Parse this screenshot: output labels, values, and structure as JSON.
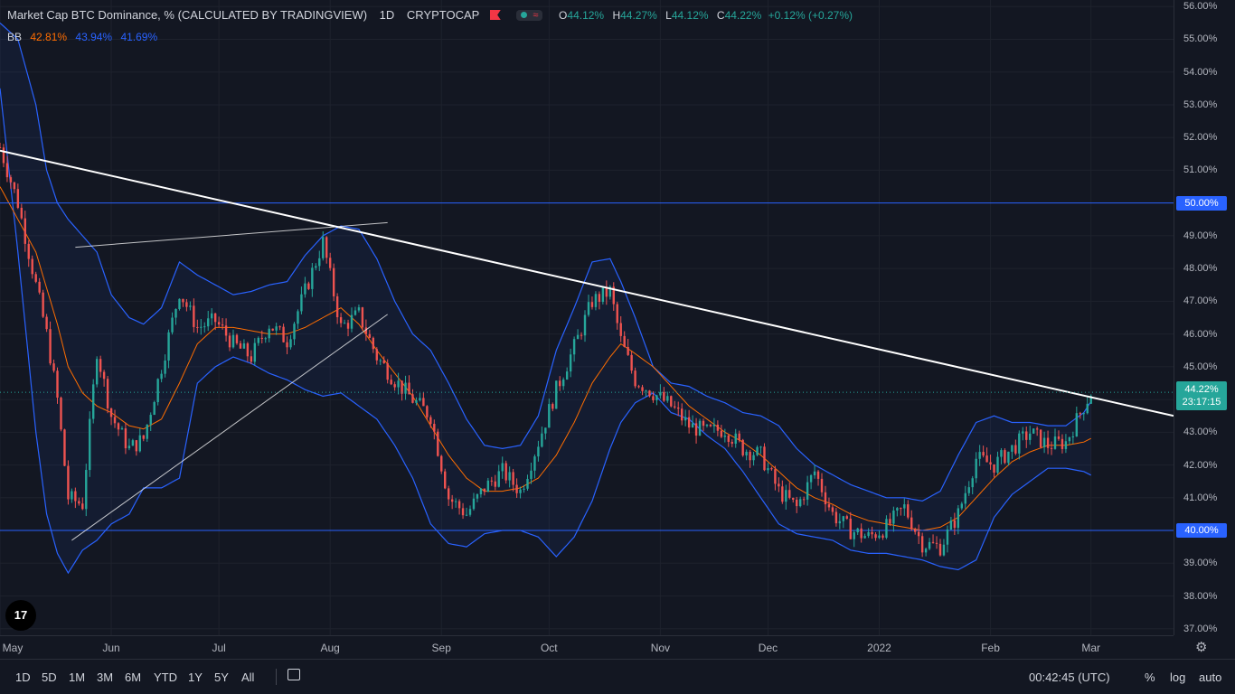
{
  "legend": {
    "title": "Market Cap BTC Dominance, % (CALCULATED BY TRADINGVIEW)",
    "interval": "1D",
    "exchange": "CRYPTOCAP",
    "o_label": "O",
    "o_value": "44.12%",
    "h_label": "H",
    "h_value": "44.27%",
    "l_label": "L",
    "l_value": "44.12%",
    "c_label": "C",
    "c_value": "44.22%",
    "change": "+0.12% (+0.27%)"
  },
  "bb_legend": {
    "name": "BB",
    "basis": "42.81%",
    "upper": "43.94%",
    "lower": "41.69%"
  },
  "logo_text": "17",
  "price_scale": {
    "ticks": [
      "56.00%",
      "55.00%",
      "54.00%",
      "53.00%",
      "52.00%",
      "51.00%",
      "50.00%",
      "49.00%",
      "48.00%",
      "47.00%",
      "46.00%",
      "45.00%",
      "44.00%",
      "43.00%",
      "42.00%",
      "41.00%",
      "40.00%",
      "39.00%",
      "38.00%",
      "37.00%"
    ],
    "tick_values": [
      56,
      55,
      54,
      53,
      52,
      51,
      50,
      49,
      48,
      47,
      46,
      45,
      44,
      43,
      42,
      41,
      40,
      39,
      38,
      37
    ],
    "hline_labels": [
      "50.00%",
      "40.00%"
    ],
    "hline_values": [
      50,
      40
    ],
    "last_price": "44.22%",
    "countdown": "23:17:15"
  },
  "time_scale": {
    "labels": [
      "May",
      "Jun",
      "Jul",
      "Aug",
      "Sep",
      "Oct",
      "Nov",
      "Dec",
      "2022",
      "Feb",
      "Mar"
    ],
    "label_days": [
      0,
      31,
      61,
      92,
      123,
      153,
      184,
      214,
      245,
      276,
      304
    ]
  },
  "chart_data": {
    "type": "candlestick",
    "title": "Market Cap BTC Dominance, % (CALCULATED BY TRADINGVIEW)",
    "x_domain": [
      "2021-05-01",
      "2022-03-24"
    ],
    "ylim": [
      36.8,
      56.2
    ],
    "x_dates": [
      "2021-05-01",
      "2021-05-06",
      "2021-05-11",
      "2021-05-14",
      "2021-05-17",
      "2021-05-20",
      "2021-05-24",
      "2021-05-28",
      "2021-06-01",
      "2021-06-06",
      "2021-06-10",
      "2021-06-15",
      "2021-06-20",
      "2021-06-25",
      "2021-06-30",
      "2021-07-05",
      "2021-07-10",
      "2021-07-15",
      "2021-07-20",
      "2021-07-25",
      "2021-07-30",
      "2021-08-04",
      "2021-08-09",
      "2021-08-14",
      "2021-08-19",
      "2021-08-24",
      "2021-08-29",
      "2021-09-03",
      "2021-09-08",
      "2021-09-13",
      "2021-09-18",
      "2021-09-23",
      "2021-09-28",
      "2021-10-03",
      "2021-10-08",
      "2021-10-13",
      "2021-10-18",
      "2021-10-21",
      "2021-10-25",
      "2021-10-30",
      "2021-11-04",
      "2021-11-09",
      "2021-11-14",
      "2021-11-19",
      "2021-11-24",
      "2021-11-29",
      "2021-12-04",
      "2021-12-09",
      "2021-12-14",
      "2021-12-19",
      "2021-12-24",
      "2021-12-29",
      "2022-01-03",
      "2022-01-08",
      "2022-01-13",
      "2022-01-18",
      "2022-01-23",
      "2022-01-28",
      "2022-02-02",
      "2022-02-07",
      "2022-02-12",
      "2022-02-17",
      "2022-02-22",
      "2022-02-27",
      "2022-03-01"
    ],
    "close": [
      51.7,
      50.0,
      47.5,
      46.0,
      44.0,
      41.0,
      40.8,
      45.5,
      43.5,
      42.5,
      42.8,
      45.0,
      47.3,
      46.2,
      46.4,
      45.7,
      45.3,
      46.3,
      45.8,
      47.3,
      48.8,
      46.2,
      46.6,
      45.3,
      44.6,
      44.0,
      43.5,
      41.0,
      40.5,
      41.3,
      41.8,
      41.2,
      42.7,
      44.3,
      45.6,
      47.0,
      47.3,
      45.8,
      44.6,
      44.2,
      43.8,
      43.2,
      43.0,
      43.1,
      42.5,
      42.3,
      41.2,
      40.7,
      41.8,
      40.5,
      40.0,
      39.8,
      40.1,
      40.7,
      39.6,
      39.5,
      40.5,
      42.2,
      42.0,
      42.5,
      43.0,
      42.6,
      42.7,
      43.8,
      44.22
    ],
    "bb_basis": [
      50.5,
      49.5,
      48.5,
      47.4,
      46.3,
      45.0,
      44.2,
      43.8,
      43.6,
      43.2,
      43.1,
      43.4,
      44.5,
      45.7,
      46.2,
      46.2,
      46.1,
      46.0,
      46.0,
      46.2,
      46.5,
      46.8,
      46.3,
      45.5,
      44.8,
      44.1,
      43.2,
      42.3,
      41.6,
      41.2,
      41.2,
      41.3,
      41.6,
      42.3,
      43.3,
      44.5,
      45.3,
      45.7,
      45.4,
      45.0,
      44.4,
      43.8,
      43.4,
      43.0,
      42.7,
      42.3,
      41.8,
      41.3,
      41.0,
      40.8,
      40.5,
      40.3,
      40.2,
      40.1,
      40.0,
      40.1,
      40.4,
      41.0,
      41.6,
      42.1,
      42.4,
      42.6,
      42.6,
      42.7,
      42.81
    ],
    "bb_upper": [
      55.5,
      55.0,
      53.0,
      51.0,
      50.0,
      49.5,
      49.0,
      48.5,
      47.2,
      46.5,
      46.3,
      46.8,
      48.2,
      47.8,
      47.5,
      47.2,
      47.3,
      47.5,
      47.6,
      48.4,
      49.0,
      49.3,
      49.2,
      48.3,
      47.0,
      46.0,
      45.5,
      44.5,
      43.4,
      42.6,
      42.5,
      42.6,
      43.5,
      45.5,
      46.8,
      48.2,
      48.3,
      47.6,
      46.5,
      45.0,
      44.5,
      44.4,
      44.1,
      43.9,
      43.6,
      43.5,
      43.2,
      42.5,
      42.0,
      41.7,
      41.4,
      41.2,
      41.0,
      41.0,
      40.9,
      41.2,
      42.3,
      43.3,
      43.5,
      43.3,
      43.3,
      43.2,
      43.2,
      43.6,
      43.94
    ],
    "bb_lower": [
      53.5,
      48.5,
      43.0,
      40.5,
      39.3,
      38.7,
      39.4,
      39.7,
      40.2,
      40.5,
      41.3,
      41.3,
      41.6,
      44.5,
      45.0,
      45.3,
      45.1,
      44.8,
      44.6,
      44.3,
      44.1,
      44.2,
      43.8,
      43.4,
      42.6,
      41.6,
      40.2,
      39.6,
      39.5,
      39.9,
      40.0,
      40.0,
      39.8,
      39.2,
      39.8,
      40.9,
      42.5,
      43.3,
      43.9,
      44.2,
      43.6,
      43.4,
      42.9,
      42.5,
      41.8,
      41.0,
      40.2,
      39.9,
      39.8,
      39.7,
      39.4,
      39.3,
      39.3,
      39.2,
      39.1,
      38.9,
      38.8,
      39.1,
      40.4,
      41.1,
      41.5,
      41.9,
      41.9,
      41.8,
      41.69
    ],
    "hlines": [
      50.0,
      40.0
    ],
    "trendlines": [
      {
        "start": [
          "2021-05-01",
          51.6
        ],
        "end": [
          "2022-03-24",
          43.5
        ]
      },
      {
        "start": [
          "2021-05-21",
          39.7
        ],
        "end": [
          "2021-08-17",
          46.6
        ]
      },
      {
        "start": [
          "2021-05-22",
          48.65
        ],
        "end": [
          "2021-08-17",
          49.4
        ]
      }
    ],
    "current_price": 44.22
  },
  "colors": {
    "up": "#26a69a",
    "down": "#ef5350",
    "bb_band": "#2962ff",
    "bb_basis": "#ff6d00",
    "hline": "#2962ff",
    "trendline": "#ffffff",
    "grid": "#1e222d"
  },
  "bottom_bar": {
    "ranges": [
      "1D",
      "5D",
      "1M",
      "3M",
      "6M",
      "YTD",
      "1Y",
      "5Y",
      "All"
    ],
    "clock": "00:42:45 (UTC)",
    "percent": "%",
    "log": "log",
    "auto": "auto"
  }
}
